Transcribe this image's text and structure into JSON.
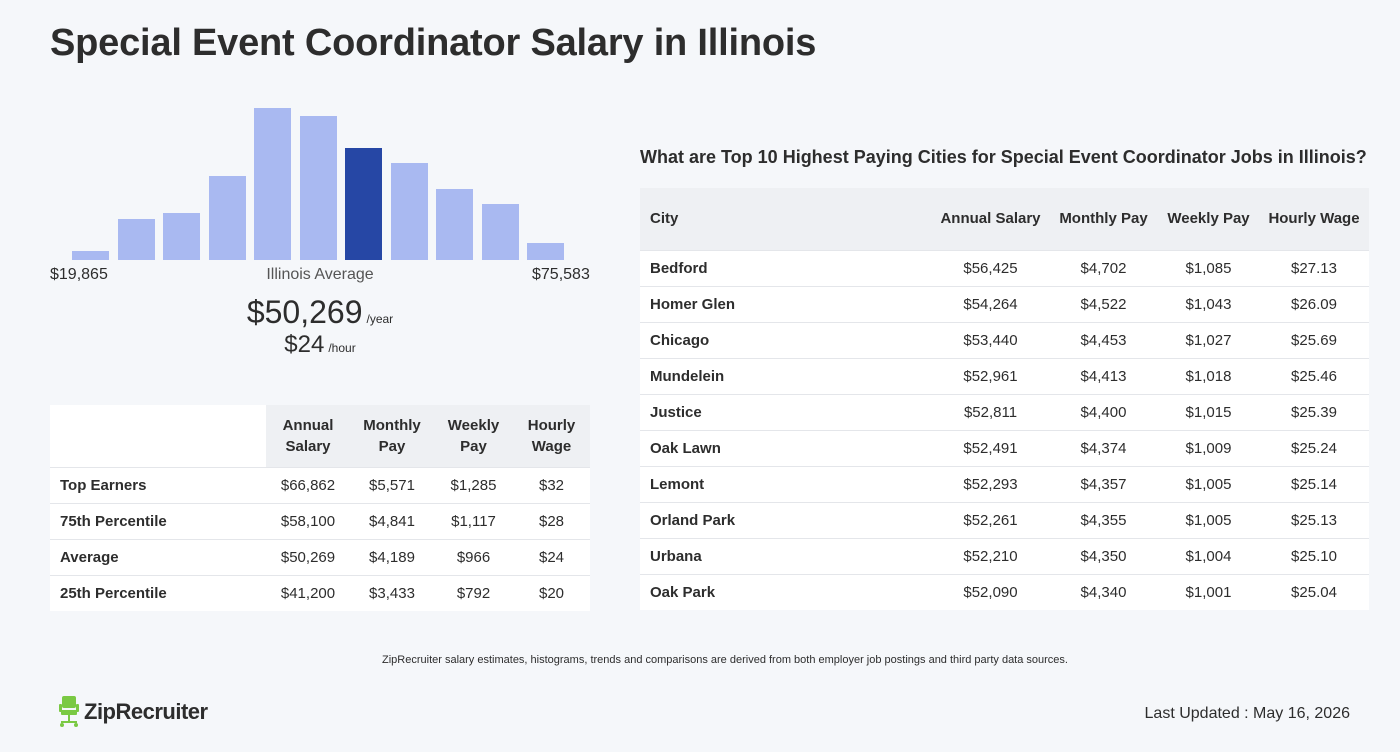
{
  "page": {
    "title": "Special Event Coordinator Salary in Illinois"
  },
  "histogram": {
    "min_label": "$19,865",
    "max_label": "$75,583",
    "avg_label": "Illinois Average",
    "bar_color": "#a9b9f1",
    "highlight_color": "#2647a5",
    "bars": [
      0.06,
      0.27,
      0.31,
      0.55,
      1.0,
      0.95,
      0.74,
      0.64,
      0.47,
      0.37,
      0.11
    ],
    "highlight_index": 6
  },
  "average": {
    "annual": "$50,269",
    "annual_unit": "/year",
    "hourly": "$24",
    "hourly_unit": "/hour"
  },
  "percentile_table": {
    "headers": [
      "Annual Salary",
      "Monthly Pay",
      "Weekly Pay",
      "Hourly Wage"
    ],
    "rows": [
      {
        "label": "Top Earners",
        "annual": "$66,862",
        "monthly": "$5,571",
        "weekly": "$1,285",
        "hourly": "$32"
      },
      {
        "label": "75th Percentile",
        "annual": "$58,100",
        "monthly": "$4,841",
        "weekly": "$1,117",
        "hourly": "$28"
      },
      {
        "label": "Average",
        "annual": "$50,269",
        "monthly": "$4,189",
        "weekly": "$966",
        "hourly": "$24"
      },
      {
        "label": "25th Percentile",
        "annual": "$41,200",
        "monthly": "$3,433",
        "weekly": "$792",
        "hourly": "$20"
      }
    ]
  },
  "cities": {
    "heading": "What are Top 10 Highest Paying Cities for Special Event Coordinator Jobs in Illinois?",
    "headers": [
      "City",
      "Annual Salary",
      "Monthly Pay",
      "Weekly Pay",
      "Hourly Wage"
    ],
    "rows": [
      {
        "city": "Bedford",
        "annual": "$56,425",
        "monthly": "$4,702",
        "weekly": "$1,085",
        "hourly": "$27.13"
      },
      {
        "city": "Homer Glen",
        "annual": "$54,264",
        "monthly": "$4,522",
        "weekly": "$1,043",
        "hourly": "$26.09"
      },
      {
        "city": "Chicago",
        "annual": "$53,440",
        "monthly": "$4,453",
        "weekly": "$1,027",
        "hourly": "$25.69"
      },
      {
        "city": "Mundelein",
        "annual": "$52,961",
        "monthly": "$4,413",
        "weekly": "$1,018",
        "hourly": "$25.46"
      },
      {
        "city": "Justice",
        "annual": "$52,811",
        "monthly": "$4,400",
        "weekly": "$1,015",
        "hourly": "$25.39"
      },
      {
        "city": "Oak Lawn",
        "annual": "$52,491",
        "monthly": "$4,374",
        "weekly": "$1,009",
        "hourly": "$25.24"
      },
      {
        "city": "Lemont",
        "annual": "$52,293",
        "monthly": "$4,357",
        "weekly": "$1,005",
        "hourly": "$25.14"
      },
      {
        "city": "Orland Park",
        "annual": "$52,261",
        "monthly": "$4,355",
        "weekly": "$1,005",
        "hourly": "$25.13"
      },
      {
        "city": "Urbana",
        "annual": "$52,210",
        "monthly": "$4,350",
        "weekly": "$1,004",
        "hourly": "$25.10"
      },
      {
        "city": "Oak Park",
        "annual": "$52,090",
        "monthly": "$4,340",
        "weekly": "$1,001",
        "hourly": "$25.04"
      }
    ]
  },
  "footer": {
    "note": "ZipRecruiter salary estimates, histograms, trends and comparisons are derived from both employer job postings and third party data sources.",
    "logo_text": "ZipRecruiter",
    "logo_icon": "chair-icon",
    "logo_color": "#7ac943",
    "updated": "Last Updated : May 16, 2026"
  }
}
